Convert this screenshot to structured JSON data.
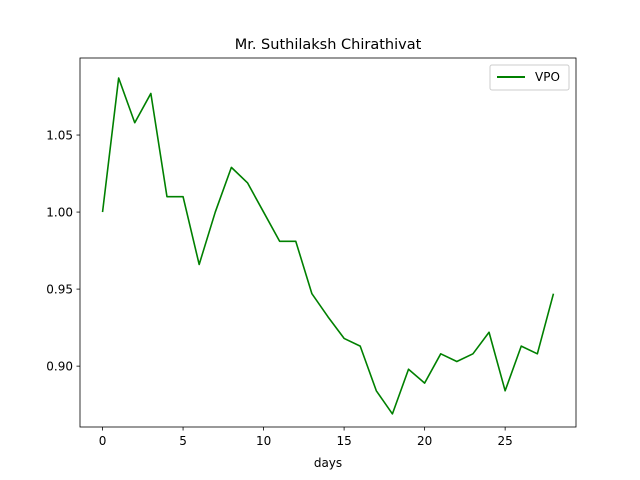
{
  "chart_data": {
    "type": "line",
    "title": "Mr. Suthilaksh Chirathivat",
    "xlabel": "days",
    "ylabel": "",
    "xlim": [
      -1.4,
      29.4
    ],
    "ylim": [
      0.8605,
      1.1
    ],
    "x_ticks": [
      0,
      5,
      10,
      15,
      20,
      25
    ],
    "x_tick_labels": [
      "0",
      "5",
      "10",
      "15",
      "20",
      "25"
    ],
    "y_ticks": [
      0.9,
      0.95,
      1.0,
      1.05
    ],
    "y_tick_labels": [
      "0.90",
      "0.95",
      "1.00",
      "1.05"
    ],
    "grid": false,
    "legend_position": "top-right",
    "series": [
      {
        "name": "VPO",
        "color": "#008000",
        "x": [
          0,
          1,
          2,
          3,
          4,
          5,
          6,
          7,
          8,
          9,
          10,
          11,
          12,
          13,
          14,
          15,
          16,
          17,
          18,
          19,
          20,
          21,
          22,
          23,
          24,
          25,
          26,
          27,
          28
        ],
        "y": [
          1.0,
          1.087,
          1.058,
          1.077,
          1.01,
          1.01,
          0.966,
          1.0,
          1.029,
          1.019,
          1.0,
          0.981,
          0.981,
          0.947,
          0.932,
          0.918,
          0.913,
          0.884,
          0.869,
          0.898,
          0.889,
          0.908,
          0.903,
          0.908,
          0.922,
          0.884,
          0.913,
          0.908,
          0.947
        ]
      }
    ]
  }
}
